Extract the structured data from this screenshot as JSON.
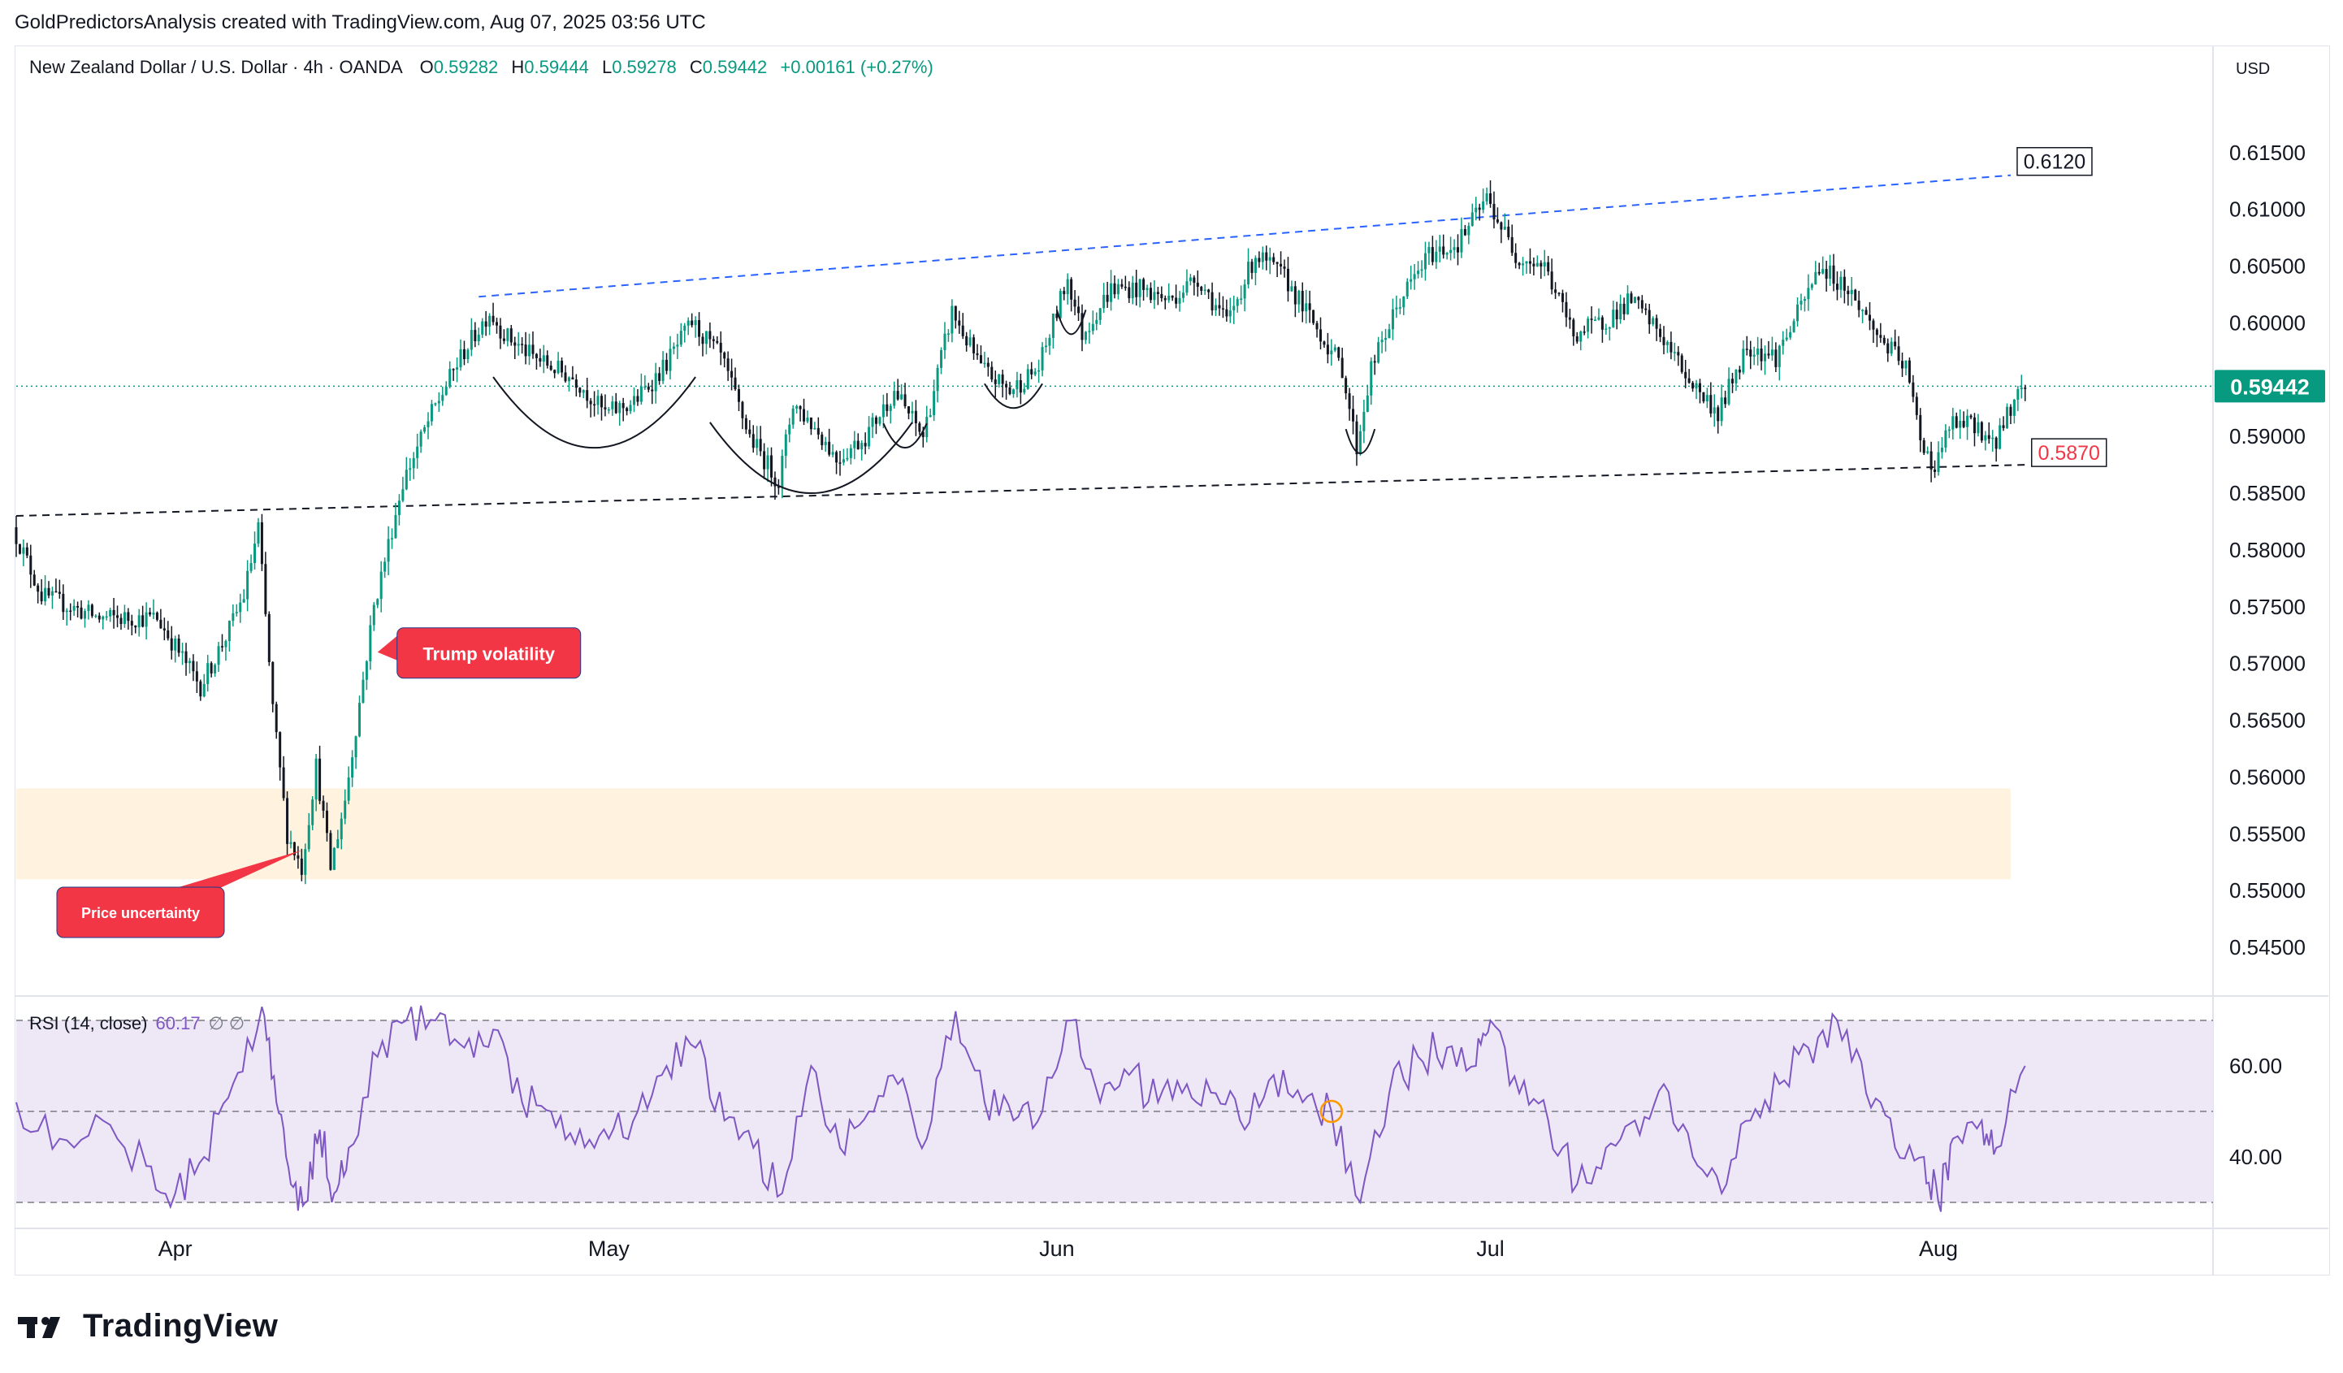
{
  "header": {
    "attribution": "GoldPredictorsAnalysis created with TradingView.com, Aug 07, 2025 03:56 UTC"
  },
  "legend": {
    "symbol": "New Zealand Dollar / U.S. Dollar · 4h · OANDA",
    "open_label": "O",
    "open": "0.59282",
    "high_label": "H",
    "high": "0.59444",
    "low_label": "L",
    "low": "0.59278",
    "close_label": "C",
    "close": "0.59442",
    "change": "+0.00161 (+0.27%)"
  },
  "currency": "USD",
  "rsi_legend": {
    "title": "RSI (14, close)",
    "value": "60.17",
    "extra": "∅ ∅"
  },
  "footer": {
    "brand": "TradingView"
  },
  "colors": {
    "up": "#089981",
    "down": "#131722",
    "last_price": "#089981",
    "rsi_line": "#7e57c2",
    "rsi_band": "#ede7f6",
    "support_zone": "#fff3e0",
    "callout": "#f23645",
    "upper_trend": "#2962ff",
    "lower_trend": "#131722"
  },
  "chart_data": [
    {
      "type": "candlestick",
      "title": "New Zealand Dollar / U.S. Dollar · 4h · OANDA",
      "ylabel": "USD",
      "ylim": [
        0.541,
        0.624
      ],
      "y_ticks": [
        "0.61500",
        "0.61000",
        "0.60500",
        "0.60000",
        "0.59000",
        "0.58500",
        "0.58000",
        "0.57500",
        "0.57000",
        "0.56500",
        "0.56000",
        "0.55500",
        "0.55000",
        "0.54500"
      ],
      "x_labels": [
        {
          "label": "Apr",
          "date": "2025-04-01"
        },
        {
          "label": "May",
          "date": "2025-05-01"
        },
        {
          "label": "Jun",
          "date": "2025-06-01"
        },
        {
          "label": "Jul",
          "date": "2025-07-01"
        },
        {
          "label": "Aug",
          "date": "2025-08-01"
        }
      ],
      "x_range": [
        "2025-03-21",
        "2025-08-20"
      ],
      "last_price": {
        "label": "0.59442",
        "value": 0.59442
      },
      "price_path": [
        {
          "date": "2025-03-21",
          "price": 0.582
        },
        {
          "date": "2025-03-23",
          "price": 0.576
        },
        {
          "date": "2025-03-27",
          "price": 0.574
        },
        {
          "date": "2025-03-31",
          "price": 0.574
        },
        {
          "date": "2025-04-03",
          "price": 0.568
        },
        {
          "date": "2025-04-05",
          "price": 0.573
        },
        {
          "date": "2025-04-06",
          "price": 0.576
        },
        {
          "date": "2025-04-07",
          "price": 0.582
        },
        {
          "date": "2025-04-08",
          "price": 0.566
        },
        {
          "date": "2025-04-09",
          "price": 0.555
        },
        {
          "date": "2025-04-10",
          "price": 0.552
        },
        {
          "date": "2025-04-11",
          "price": 0.561
        },
        {
          "date": "2025-04-12",
          "price": 0.552
        },
        {
          "date": "2025-04-13",
          "price": 0.558
        },
        {
          "date": "2025-04-15",
          "price": 0.575
        },
        {
          "date": "2025-04-17",
          "price": 0.586
        },
        {
          "date": "2025-04-19",
          "price": 0.592
        },
        {
          "date": "2025-04-21",
          "price": 0.597
        },
        {
          "date": "2025-04-23",
          "price": 0.601
        },
        {
          "date": "2025-04-24",
          "price": 0.599
        },
        {
          "date": "2025-04-26",
          "price": 0.597
        },
        {
          "date": "2025-04-29",
          "price": 0.595
        },
        {
          "date": "2025-05-01",
          "price": 0.592
        },
        {
          "date": "2025-05-03",
          "price": 0.593
        },
        {
          "date": "2025-05-05",
          "price": 0.596
        },
        {
          "date": "2025-05-07",
          "price": 0.6
        },
        {
          "date": "2025-05-09",
          "price": 0.597
        },
        {
          "date": "2025-05-11",
          "price": 0.59
        },
        {
          "date": "2025-05-13",
          "price": 0.586
        },
        {
          "date": "2025-05-14",
          "price": 0.593
        },
        {
          "date": "2025-05-16",
          "price": 0.59
        },
        {
          "date": "2025-05-17",
          "price": 0.588
        },
        {
          "date": "2025-05-19",
          "price": 0.59
        },
        {
          "date": "2025-05-21",
          "price": 0.594
        },
        {
          "date": "2025-05-23",
          "price": 0.59
        },
        {
          "date": "2025-05-25",
          "price": 0.601
        },
        {
          "date": "2025-05-27",
          "price": 0.596
        },
        {
          "date": "2025-05-29",
          "price": 0.594
        },
        {
          "date": "2025-05-31",
          "price": 0.596
        },
        {
          "date": "2025-06-02",
          "price": 0.604
        },
        {
          "date": "2025-06-03",
          "price": 0.599
        },
        {
          "date": "2025-06-05",
          "price": 0.603
        },
        {
          "date": "2025-06-07",
          "price": 0.603
        },
        {
          "date": "2025-06-09",
          "price": 0.602
        },
        {
          "date": "2025-06-11",
          "price": 0.604
        },
        {
          "date": "2025-06-13",
          "price": 0.6
        },
        {
          "date": "2025-06-15",
          "price": 0.606
        },
        {
          "date": "2025-06-17",
          "price": 0.604
        },
        {
          "date": "2025-06-19",
          "price": 0.6
        },
        {
          "date": "2025-06-21",
          "price": 0.596
        },
        {
          "date": "2025-06-22",
          "price": 0.589
        },
        {
          "date": "2025-06-23",
          "price": 0.596
        },
        {
          "date": "2025-06-25",
          "price": 0.602
        },
        {
          "date": "2025-06-27",
          "price": 0.606
        },
        {
          "date": "2025-06-29",
          "price": 0.607
        },
        {
          "date": "2025-07-01",
          "price": 0.611
        },
        {
          "date": "2025-07-03",
          "price": 0.606
        },
        {
          "date": "2025-07-05",
          "price": 0.605
        },
        {
          "date": "2025-07-07",
          "price": 0.599
        },
        {
          "date": "2025-07-09",
          "price": 0.6
        },
        {
          "date": "2025-07-11",
          "price": 0.602
        },
        {
          "date": "2025-07-13",
          "price": 0.599
        },
        {
          "date": "2025-07-15",
          "price": 0.595
        },
        {
          "date": "2025-07-17",
          "price": 0.592
        },
        {
          "date": "2025-07-19",
          "price": 0.598
        },
        {
          "date": "2025-07-21",
          "price": 0.597
        },
        {
          "date": "2025-07-23",
          "price": 0.602
        },
        {
          "date": "2025-07-24",
          "price": 0.605
        },
        {
          "date": "2025-07-26",
          "price": 0.603
        },
        {
          "date": "2025-07-28",
          "price": 0.599
        },
        {
          "date": "2025-07-30",
          "price": 0.596
        },
        {
          "date": "2025-07-31",
          "price": 0.59
        },
        {
          "date": "2025-08-01",
          "price": 0.587
        },
        {
          "date": "2025-08-02",
          "price": 0.591
        },
        {
          "date": "2025-08-04",
          "price": 0.591
        },
        {
          "date": "2025-08-05",
          "price": 0.589
        },
        {
          "date": "2025-08-06",
          "price": 0.592
        },
        {
          "date": "2025-08-07",
          "price": 0.5944
        }
      ],
      "support_zone": {
        "from": "2025-03-21",
        "to": "2025-08-06",
        "y_low": 0.551,
        "y_high": 0.559
      },
      "trendlines": [
        {
          "name": "upper",
          "style": "dashed",
          "start": {
            "date": "2025-04-22",
            "price": 0.6023
          },
          "end": {
            "date": "2025-08-06",
            "price": 0.613
          },
          "label": "0.6120"
        },
        {
          "name": "lower",
          "style": "dashed",
          "start": {
            "date": "2025-03-21",
            "price": 0.583
          },
          "end": {
            "date": "2025-08-07",
            "price": 0.5875
          },
          "label": "0.5870"
        }
      ],
      "arcs": [
        {
          "from": "2025-04-23",
          "to": "2025-05-07",
          "bottom": 0.589
        },
        {
          "from": "2025-05-08",
          "to": "2025-05-22",
          "bottom": 0.585
        },
        {
          "from": "2025-05-20",
          "to": "2025-05-23",
          "bottom": 0.589
        },
        {
          "from": "2025-05-27",
          "to": "2025-05-31",
          "bottom": 0.5925
        },
        {
          "from": "2025-06-01",
          "to": "2025-06-03",
          "bottom": 0.599
        },
        {
          "from": "2025-06-21",
          "to": "2025-06-23",
          "bottom": 0.5885
        }
      ],
      "annotations": [
        {
          "text": "Trump volatility",
          "date": "2025-04-15",
          "price": 0.571
        },
        {
          "text": "Price uncertainty",
          "date": "2025-04-09",
          "price": 0.554
        }
      ]
    },
    {
      "type": "line",
      "title": "RSI (14, close)",
      "ylim": [
        25,
        75
      ],
      "y_ticks": [
        "60.00",
        "40.00"
      ],
      "bands": {
        "upper": 70,
        "middle": 50,
        "lower": 30
      },
      "last_value": 60.17,
      "marker": {
        "date": "2025-06-20",
        "value": 50
      },
      "series": [
        {
          "points": [
            {
              "date": "2025-03-21",
              "value": 52
            },
            {
              "date": "2025-03-24",
              "value": 44
            },
            {
              "date": "2025-03-27",
              "value": 48
            },
            {
              "date": "2025-03-30",
              "value": 38
            },
            {
              "date": "2025-04-01",
              "value": 32
            },
            {
              "date": "2025-04-03",
              "value": 40
            },
            {
              "date": "2025-04-05",
              "value": 56
            },
            {
              "date": "2025-04-07",
              "value": 73
            },
            {
              "date": "2025-04-08",
              "value": 52
            },
            {
              "date": "2025-04-09",
              "value": 34
            },
            {
              "date": "2025-04-10",
              "value": 30
            },
            {
              "date": "2025-04-11",
              "value": 46
            },
            {
              "date": "2025-04-12",
              "value": 32
            },
            {
              "date": "2025-04-13",
              "value": 42
            },
            {
              "date": "2025-04-15",
              "value": 62
            },
            {
              "date": "2025-04-17",
              "value": 70
            },
            {
              "date": "2025-04-19",
              "value": 70
            },
            {
              "date": "2025-04-21",
              "value": 64
            },
            {
              "date": "2025-04-23",
              "value": 68
            },
            {
              "date": "2025-04-25",
              "value": 52
            },
            {
              "date": "2025-04-27",
              "value": 50
            },
            {
              "date": "2025-04-29",
              "value": 46
            },
            {
              "date": "2025-05-01",
              "value": 44
            },
            {
              "date": "2025-05-03",
              "value": 50
            },
            {
              "date": "2025-05-05",
              "value": 60
            },
            {
              "date": "2025-05-07",
              "value": 64
            },
            {
              "date": "2025-05-09",
              "value": 48
            },
            {
              "date": "2025-05-11",
              "value": 42
            },
            {
              "date": "2025-05-13",
              "value": 32
            },
            {
              "date": "2025-05-15",
              "value": 60
            },
            {
              "date": "2025-05-17",
              "value": 42
            },
            {
              "date": "2025-05-19",
              "value": 50
            },
            {
              "date": "2025-05-21",
              "value": 56
            },
            {
              "date": "2025-05-23",
              "value": 44
            },
            {
              "date": "2025-05-25",
              "value": 72
            },
            {
              "date": "2025-05-27",
              "value": 52
            },
            {
              "date": "2025-05-29",
              "value": 48
            },
            {
              "date": "2025-05-31",
              "value": 50
            },
            {
              "date": "2025-06-02",
              "value": 70
            },
            {
              "date": "2025-06-04",
              "value": 52
            },
            {
              "date": "2025-06-06",
              "value": 58
            },
            {
              "date": "2025-06-08",
              "value": 52
            },
            {
              "date": "2025-06-10",
              "value": 56
            },
            {
              "date": "2025-06-12",
              "value": 54
            },
            {
              "date": "2025-06-14",
              "value": 46
            },
            {
              "date": "2025-06-16",
              "value": 58
            },
            {
              "date": "2025-06-18",
              "value": 52
            },
            {
              "date": "2025-06-20",
              "value": 50
            },
            {
              "date": "2025-06-22",
              "value": 30
            },
            {
              "date": "2025-06-24",
              "value": 54
            },
            {
              "date": "2025-06-26",
              "value": 62
            },
            {
              "date": "2025-06-28",
              "value": 64
            },
            {
              "date": "2025-06-30",
              "value": 60
            },
            {
              "date": "2025-07-01",
              "value": 70
            },
            {
              "date": "2025-07-03",
              "value": 54
            },
            {
              "date": "2025-07-05",
              "value": 48
            },
            {
              "date": "2025-07-07",
              "value": 34
            },
            {
              "date": "2025-07-09",
              "value": 42
            },
            {
              "date": "2025-07-11",
              "value": 48
            },
            {
              "date": "2025-07-13",
              "value": 56
            },
            {
              "date": "2025-07-15",
              "value": 40
            },
            {
              "date": "2025-07-17",
              "value": 32
            },
            {
              "date": "2025-07-19",
              "value": 48
            },
            {
              "date": "2025-07-21",
              "value": 56
            },
            {
              "date": "2025-07-23",
              "value": 64
            },
            {
              "date": "2025-07-25",
              "value": 70
            },
            {
              "date": "2025-07-27",
              "value": 54
            },
            {
              "date": "2025-07-29",
              "value": 42
            },
            {
              "date": "2025-07-31",
              "value": 40
            },
            {
              "date": "2025-08-01",
              "value": 30
            },
            {
              "date": "2025-08-02",
              "value": 44
            },
            {
              "date": "2025-08-04",
              "value": 48
            },
            {
              "date": "2025-08-05",
              "value": 42
            },
            {
              "date": "2025-08-07",
              "value": 60
            }
          ]
        }
      ]
    }
  ]
}
